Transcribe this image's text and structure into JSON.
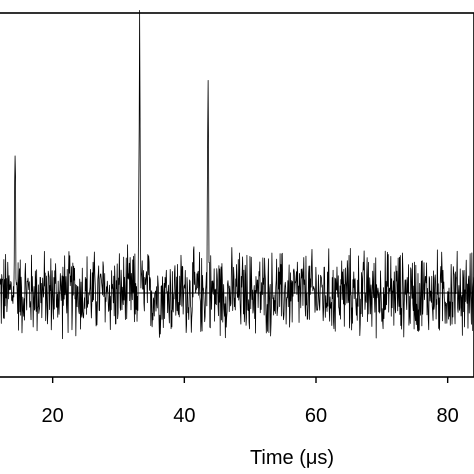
{
  "chart_data": {
    "type": "line",
    "title": "",
    "xlabel": "Time (μs)",
    "ylabel": "",
    "xlim": [
      12,
      84
    ],
    "x_ticks": [
      {
        "value": 20,
        "label": "20"
      },
      {
        "value": 40,
        "label": "40"
      },
      {
        "value": 60,
        "label": "60"
      },
      {
        "value": 80,
        "label": "80"
      }
    ],
    "baseline_visible": true,
    "grid": false,
    "legend": "none",
    "series": [
      {
        "color": "#000000",
        "noise_amplitude": 0.12,
        "peaks": [
          {
            "x": 14.3,
            "height": 0.48
          },
          {
            "x": 33.2,
            "height": 0.88
          },
          {
            "x": 43.6,
            "height": 0.74
          }
        ]
      }
    ],
    "ylim": [
      -0.3,
      1.0
    ]
  }
}
